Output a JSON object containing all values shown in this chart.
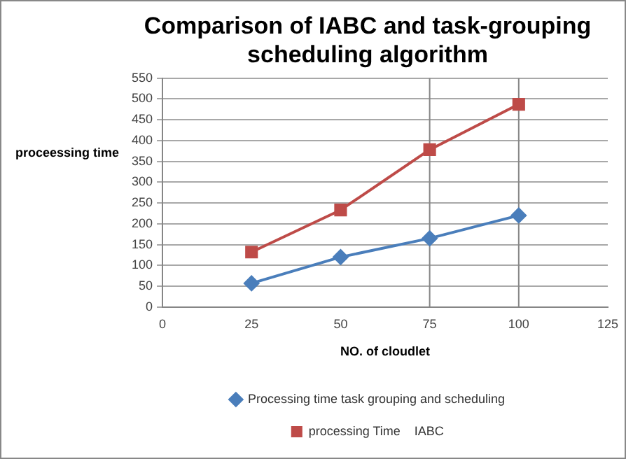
{
  "chart_data": {
    "type": "line",
    "title": "Comparison of IABC and task-grouping scheduling algorithm",
    "xlabel": "NO. of cloudlet",
    "ylabel": "proceessing time",
    "x": [
      25,
      50,
      75,
      100
    ],
    "series": [
      {
        "name": "Processing time task grouping and scheduling",
        "color": "#4a7ebb",
        "values": [
          57,
          120,
          165,
          220
        ],
        "marker": "diamond"
      },
      {
        "name": "processing Time    IABC",
        "color": "#be4b48",
        "values": [
          132,
          233,
          378,
          487
        ],
        "marker": "square"
      }
    ],
    "xlim": [
      0,
      125
    ],
    "xticks": [
      0,
      25,
      50,
      75,
      100,
      125
    ],
    "ylim": [
      0,
      550
    ],
    "yticks": [
      0,
      50,
      100,
      150,
      200,
      250,
      300,
      350,
      400,
      450,
      500,
      550
    ],
    "grid": "y",
    "legend": "bottom",
    "line_style": "solid",
    "ref_lines": [
      {
        "axis": "x",
        "value": 75,
        "color": "#868686"
      },
      {
        "axis": "x",
        "value": 100,
        "color": "#868686"
      }
    ]
  }
}
